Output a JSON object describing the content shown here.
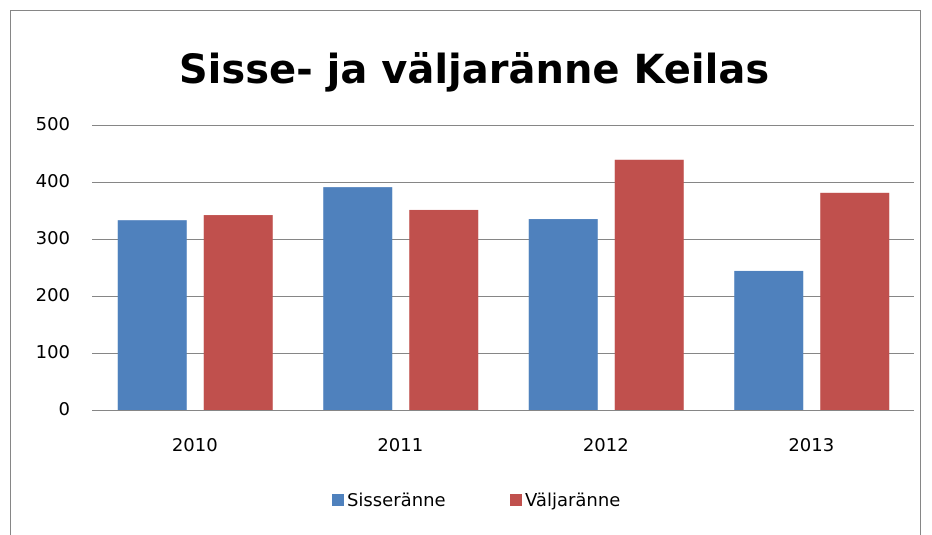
{
  "chart_data": {
    "type": "bar",
    "title": "Sisse- ja väljaränne Keilas",
    "categories": [
      "2010",
      "2011",
      "2012",
      "2013"
    ],
    "series": [
      {
        "name": "Sisseränne",
        "color": "#4f81bd",
        "values": [
          333,
          391,
          335,
          244
        ]
      },
      {
        "name": "Väljaränne",
        "color": "#c0504d",
        "values": [
          342,
          351,
          439,
          381
        ]
      }
    ],
    "ylim": [
      0,
      500
    ],
    "yticks": [
      0,
      100,
      200,
      300,
      400,
      500
    ],
    "grid": true,
    "legend": "bottom"
  }
}
